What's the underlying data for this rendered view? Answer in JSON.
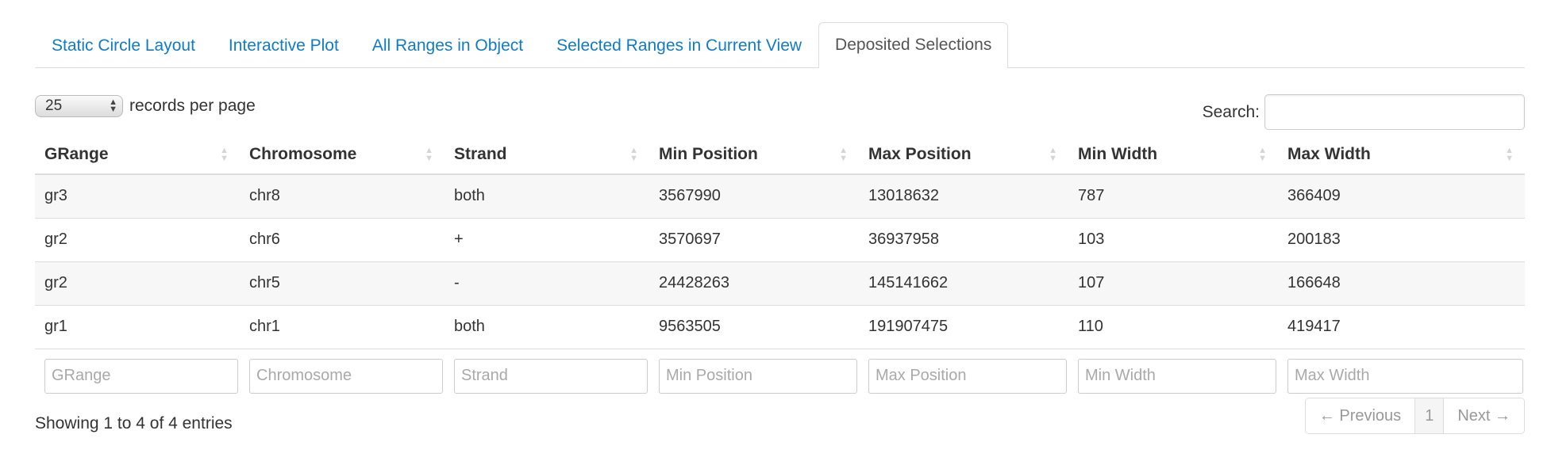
{
  "tabs": [
    {
      "label": "Static Circle Layout",
      "active": false
    },
    {
      "label": "Interactive Plot",
      "active": false
    },
    {
      "label": "All Ranges in Object",
      "active": false
    },
    {
      "label": "Selected Ranges in Current View",
      "active": false
    },
    {
      "label": "Deposited Selections",
      "active": true
    }
  ],
  "length": {
    "value": "25",
    "label": "records per page"
  },
  "search": {
    "label": "Search:",
    "value": ""
  },
  "table": {
    "columns": [
      "GRange",
      "Chromosome",
      "Strand",
      "Min Position",
      "Max Position",
      "Min Width",
      "Max Width"
    ],
    "rows": [
      [
        "gr3",
        "chr8",
        "both",
        "3567990",
        "13018632",
        "787",
        "366409"
      ],
      [
        "gr2",
        "chr6",
        "+",
        "3570697",
        "36937958",
        "103",
        "200183"
      ],
      [
        "gr2",
        "chr5",
        "-",
        "24428263",
        "145141662",
        "107",
        "166648"
      ],
      [
        "gr1",
        "chr1",
        "both",
        "9563505",
        "191907475",
        "110",
        "419417"
      ]
    ],
    "filters": [
      "GRange",
      "Chromosome",
      "Strand",
      "Min Position",
      "Max Position",
      "Min Width",
      "Max Width"
    ]
  },
  "footer": {
    "info": "Showing 1 to 4 of 4 entries",
    "prev_label": "← Previous",
    "page": "1",
    "next_label": "Next →"
  },
  "icons": {
    "sort": "sort-both-icon",
    "select_arrows": "select-updown-icon"
  },
  "colors": {
    "link": "#0f7cc4",
    "stripe": "#f7f7f7",
    "border": "#dddddd"
  }
}
